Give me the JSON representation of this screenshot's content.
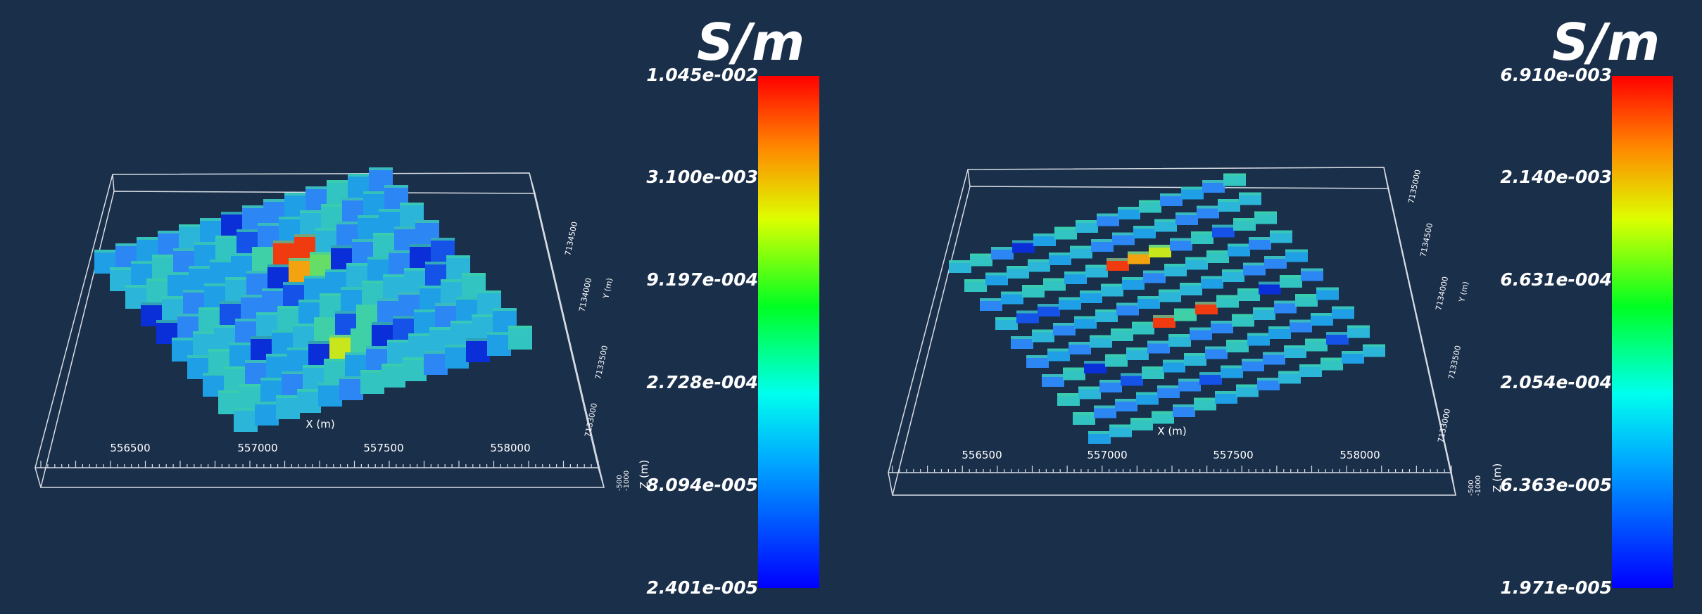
{
  "colors": {
    "background": "#1a2f4a",
    "frame": "#d8dde4",
    "text": "#ffffff"
  },
  "chart_data": [
    {
      "type": "heatmap",
      "title": "",
      "colorbar": {
        "units": "S/m",
        "ticks": [
          "1.045e-002",
          "3.100e-003",
          "9.197e-004",
          "2.728e-004",
          "8.094e-005",
          "2.401e-005"
        ],
        "vmin": 2.401e-05,
        "vmax": 0.01045,
        "scale": "log",
        "colormap": "rainbow (blue-cyan-green-yellow-red)"
      },
      "x_axis": {
        "label": "X (m)",
        "ticks": [
          "556500",
          "557000",
          "557500",
          "558000"
        ]
      },
      "y_axis": {
        "label": "Y (m)",
        "ticks": [
          "7133000",
          "7133500",
          "7134000",
          "7134500"
        ]
      },
      "z_axis": {
        "label": "Z (m)",
        "ticks": [
          "-500",
          "-1000"
        ]
      },
      "survey_lines": 10,
      "cells_per_line": 14,
      "anomalies": "moderate to high conductivity clusters near lines 3 and 7 around X=557200-557500"
    },
    {
      "type": "heatmap",
      "title": "",
      "colorbar": {
        "units": "S/m",
        "ticks": [
          "6.910e-003",
          "2.140e-003",
          "6.631e-004",
          "2.054e-004",
          "6.363e-005",
          "1.971e-005"
        ],
        "vmin": 1.971e-05,
        "vmax": 0.00691,
        "scale": "log",
        "colormap": "rainbow (blue-cyan-green-yellow-red)"
      },
      "x_axis": {
        "label": "X (m)",
        "ticks": [
          "556500",
          "557000",
          "557500",
          "558000"
        ]
      },
      "y_axis": {
        "label": "Y (m)",
        "ticks": [
          "7133000",
          "7133500",
          "7134000",
          "7134500",
          "7135000"
        ]
      },
      "z_axis": {
        "label": "Z (m)",
        "ticks": [
          "-500",
          "-1000"
        ]
      },
      "survey_lines": 10,
      "cells_per_line": 14,
      "anomalies": "isolated conductive cells on lines 3 and 6 near X=557300"
    }
  ]
}
